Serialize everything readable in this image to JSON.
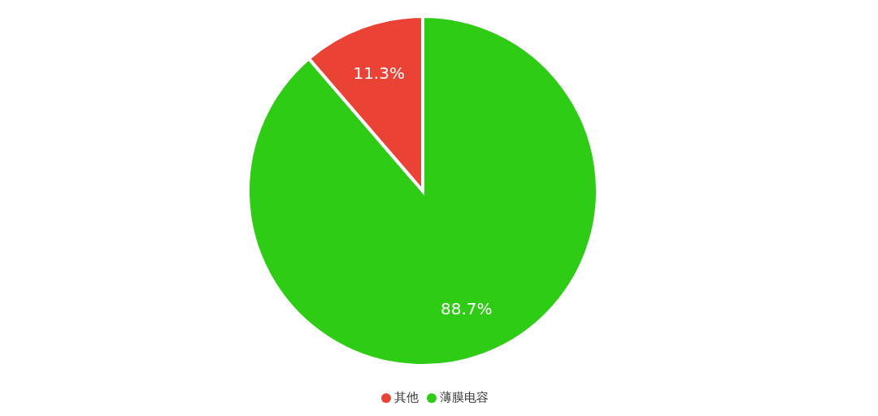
{
  "chart_data": {
    "type": "pie",
    "categories": [
      "薄膜电容",
      "其他"
    ],
    "values": [
      88.7,
      11.3
    ],
    "colors": [
      "#2ecc15",
      "#ea4335"
    ],
    "value_labels": [
      "88.7%",
      "11.3%"
    ],
    "legend": "bottom"
  }
}
